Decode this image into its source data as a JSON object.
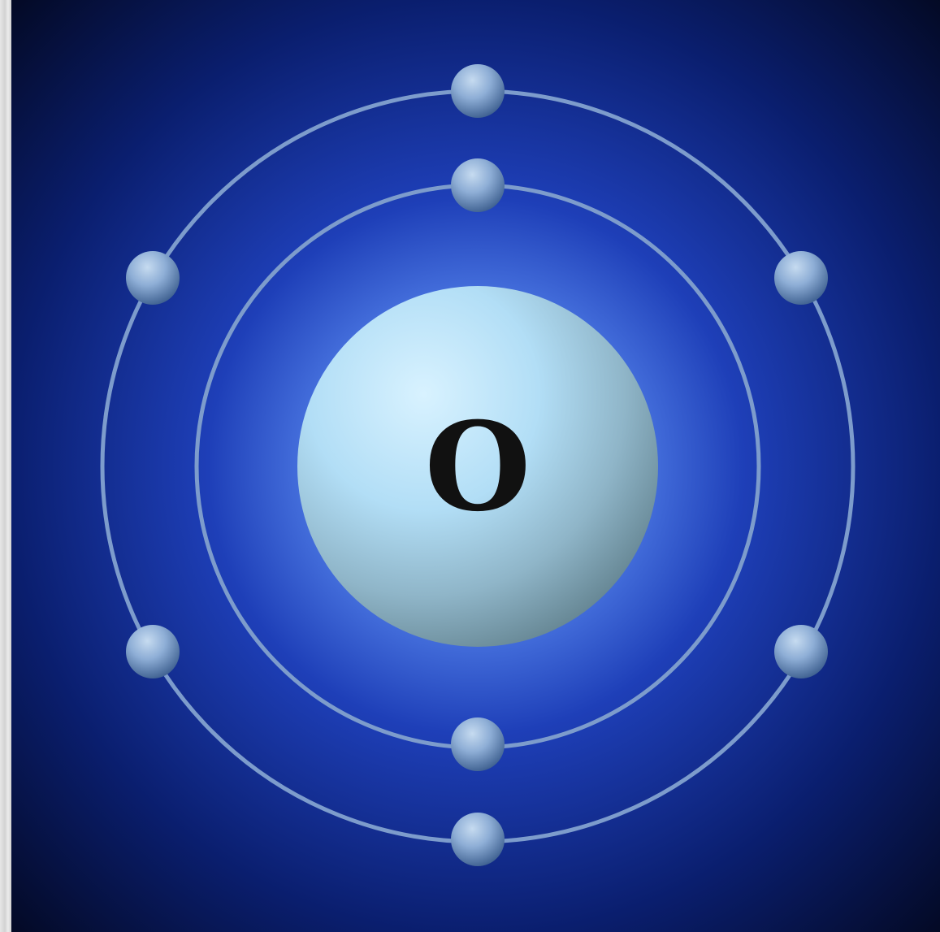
{
  "atom": {
    "element_symbol": "O",
    "inner_shell_electron_count": 2,
    "outer_shell_electron_count": 6
  },
  "colors": {
    "background_center": "#3c64dc",
    "background_edge": "#040a24",
    "orbit": "#7f9cc9",
    "electron_light": "#a9c4e2",
    "electron_dark": "#3d5f8f",
    "nucleus_light": "#c8ecff",
    "nucleus_dark": "#5f7f8c",
    "symbol": "#111111"
  }
}
